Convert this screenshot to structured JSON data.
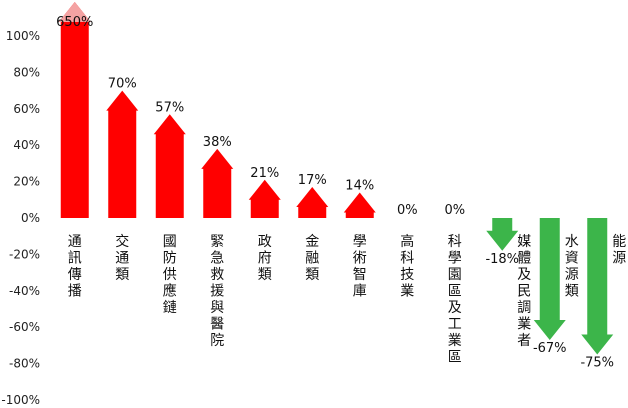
{
  "chart_data": {
    "type": "bar",
    "categories": [
      "通訊傳播",
      "交通類",
      "國防供應鏈",
      "緊急救援與醫院",
      "政府類",
      "金融類",
      "學術智庫",
      "高科技業",
      "科學園區及工業區",
      "媒體及民調業者",
      "水資源類",
      "能源"
    ],
    "values": [
      650,
      70,
      57,
      38,
      21,
      17,
      14,
      0,
      0,
      -18,
      -67,
      -75
    ],
    "data_labels": [
      "650%",
      "70%",
      "57%",
      "38%",
      "21%",
      "17%",
      "14%",
      "0%",
      "0%",
      "-18%",
      "-67%",
      "-75%"
    ],
    "ylim": [
      -100,
      100
    ],
    "yticks": [
      "100%",
      "80%",
      "60%",
      "40%",
      "20%",
      "0%",
      "-20%",
      "-40%",
      "-60%",
      "-80%",
      "-100%"
    ],
    "grid": false,
    "title": "",
    "xlabel": "",
    "ylabel": "",
    "colors": {
      "positive": "#ff0000",
      "clipped": "#f4a3a3",
      "negative": "#3cb54a"
    }
  }
}
